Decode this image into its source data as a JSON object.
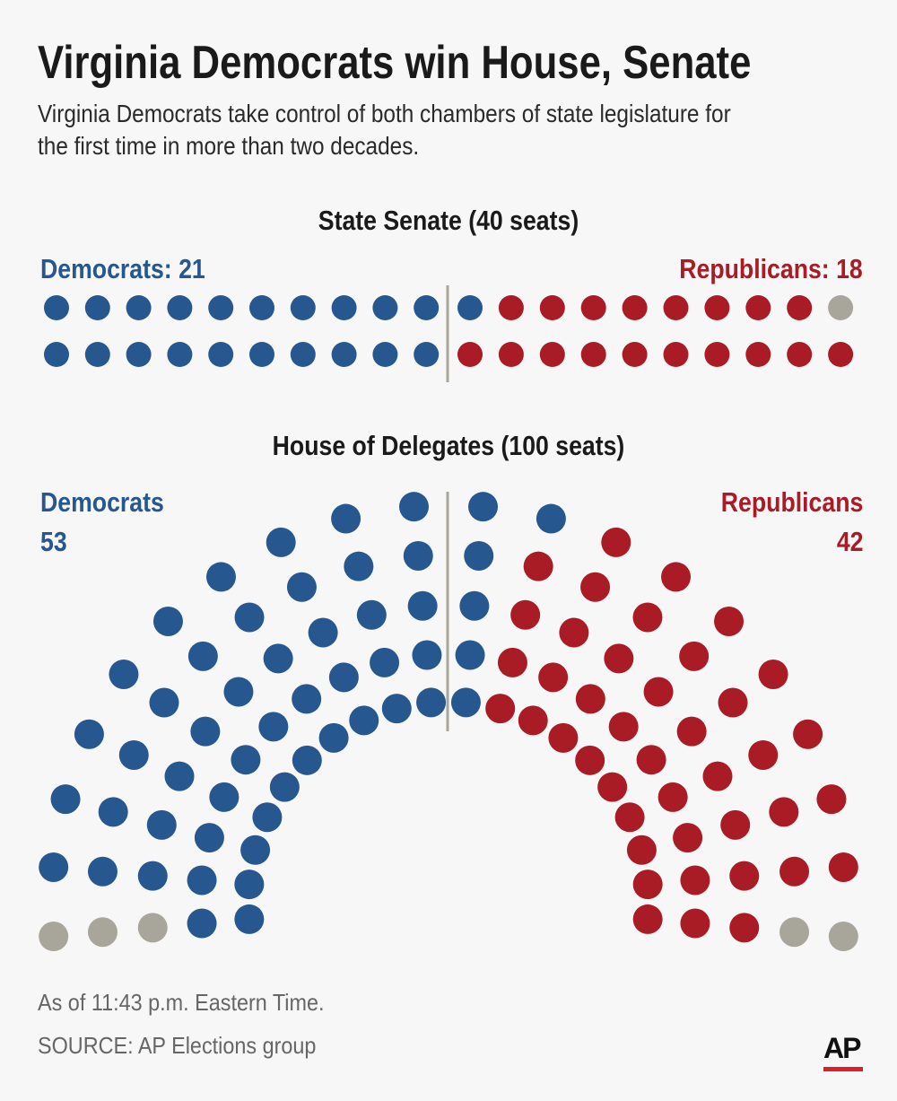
{
  "title": "Virginia Democrats win House, Senate",
  "subtitle_lines": [
    "Virginia Democrats take control of both chambers of state legislature for",
    "the first time in more than two decades."
  ],
  "colors": {
    "democrats": "#26578f",
    "republicans": "#a91b25",
    "undecided": "#a8a69a",
    "background": "#f7f7f7"
  },
  "chart_data": [
    {
      "type": "parliament",
      "title": "State Senate (40 seats)",
      "layout": "two rows of 20 dots",
      "left_label": "Democrats: 21",
      "right_label": "Republicans: 18",
      "total": 40,
      "series": [
        {
          "name": "Democrats",
          "value": 21
        },
        {
          "name": "Republicans",
          "value": 18
        },
        {
          "name": "",
          "value": 1,
          "note_color": "undecided"
        }
      ]
    },
    {
      "type": "parliament",
      "title": "House of Delegates (100 seats)",
      "layout": "semicircle, 5 rows",
      "left_label": [
        "Democrats",
        "53"
      ],
      "right_label": [
        "Republicans",
        "42"
      ],
      "total": 100,
      "series": [
        {
          "name": "Democrats",
          "value": 53
        },
        {
          "name": "Republicans",
          "value": 42
        },
        {
          "name": "",
          "value": 5,
          "note_color": "undecided"
        }
      ]
    }
  ],
  "footer": {
    "timestamp": "As of 11:43 p.m. Eastern Time.",
    "source": "SOURCE: AP Elections group"
  },
  "logo": "AP"
}
